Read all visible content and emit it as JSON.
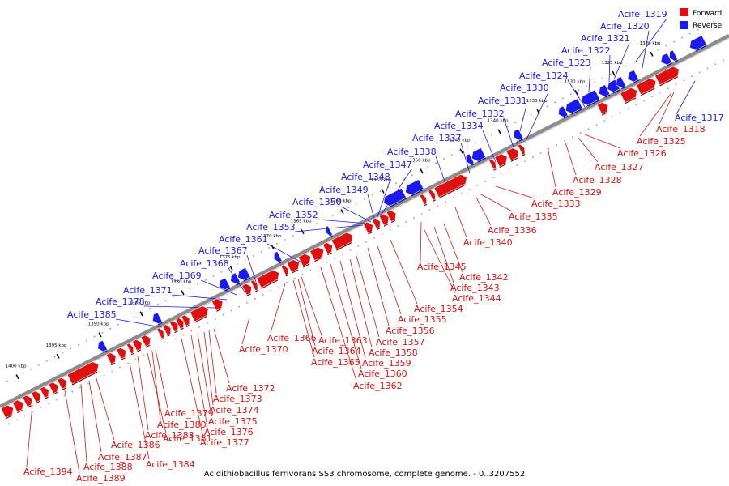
{
  "colors": {
    "forward": "#e01010",
    "reverse": "#1a1aee",
    "backbone": "#8c8c8c"
  },
  "legend": {
    "forward": "Forward",
    "reverse": "Reverse"
  },
  "caption": "Acidithiobacillus ferrivorans SS3 chromosome, complete genome. - 0..3207552",
  "ticks": [
    "1320 kbp",
    "1325 kbp",
    "1330 kbp",
    "1335 kbp",
    "1340 kbp",
    "1345 kbp",
    "1350 kbp",
    "1355 kbp",
    "1360 kbp",
    "1365 kbp",
    "1370 kbp",
    "1375 kbp",
    "1380 kbp",
    "1385 kbp",
    "1390 kbp",
    "1395 kbp",
    "1400 kbp"
  ],
  "reverse_labels": [
    "Acife_1319",
    "Acife_1320",
    "Acife_1321",
    "Acife_1322",
    "Acife_1323",
    "Acife_1324",
    "Acife_1330",
    "Acife_1331",
    "Acife_1332",
    "Acife_1334",
    "Acife_1337",
    "Acife_1338",
    "Acife_1347",
    "Acife_1348",
    "Acife_1349",
    "Acife_1350",
    "Acife_1352",
    "Acife_1353",
    "Acife_1361",
    "Acife_1367",
    "Acife_1368",
    "Acife_1369",
    "Acife_1371",
    "Acife_1378",
    "Acife_1385",
    "Acife_1317"
  ],
  "forward_labels": [
    "Acife_1318",
    "Acife_1325",
    "Acife_1326",
    "Acife_1327",
    "Acife_1328",
    "Acife_1329",
    "Acife_1333",
    "Acife_1335",
    "Acife_1336",
    "Acife_1340",
    "Acife_1345",
    "Acife_1342",
    "Acife_1343",
    "Acife_1344",
    "Acife_1354",
    "Acife_1355",
    "Acife_1356",
    "Acife_1357",
    "Acife_1358",
    "Acife_1359",
    "Acife_1360",
    "Acife_1362",
    "Acife_1363",
    "Acife_1364",
    "Acife_1365",
    "Acife_1366",
    "Acife_1370",
    "Acife_1372",
    "Acife_1373",
    "Acife_1374",
    "Acife_1375",
    "Acife_1376",
    "Acife_1377",
    "Acife_1379",
    "Acife_1380",
    "Acife_1381",
    "Acife_1383",
    "Acife_1384",
    "Acife_1386",
    "Acife_1387",
    "Acife_1388",
    "Acife_1389",
    "Acife_1394"
  ]
}
